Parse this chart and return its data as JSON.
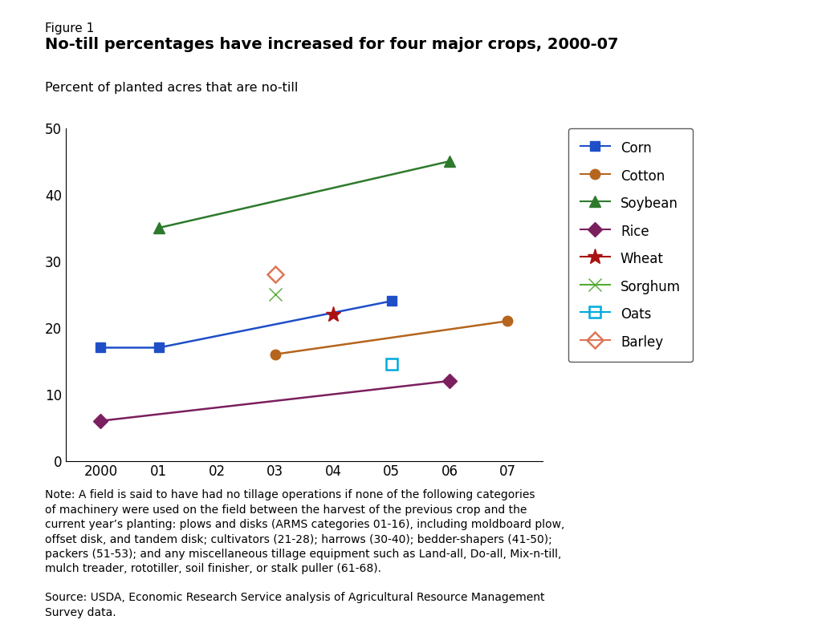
{
  "figure_label": "Figure 1",
  "title": "No-till percentages have increased for four major crops, 2000-07",
  "ylabel": "Percent of planted acres that are no-till",
  "ylim": [
    0,
    50
  ],
  "yticks": [
    0,
    10,
    20,
    30,
    40,
    50
  ],
  "xticks": [
    2000,
    2001,
    2002,
    2003,
    2004,
    2005,
    2006,
    2007
  ],
  "xticklabels": [
    "2000",
    "01",
    "02",
    "03",
    "04",
    "05",
    "06",
    "07"
  ],
  "background_color": "#ffffff",
  "note_text": "Note: A field is said to have had no tillage operations if none of the following categories\nof machinery were used on the field between the harvest of the previous crop and the\ncurrent year’s planting: plows and disks (ARMS categories 01-16), including moldboard plow,\noffset disk, and tandem disk; cultivators (21-28); harrows (30-40); bedder-shapers (41-50);\npackers (51-53); and any miscellaneous tillage equipment such as Land-all, Do-all, Mix-n-till,\nmulch treader, rototiller, soil finisher, or stalk puller (61-68).",
  "source_text": "Source: USDA, Economic Research Service analysis of Agricultural Resource Management\nSurvey data.",
  "series": {
    "Corn": {
      "x": [
        2000,
        2001,
        2005
      ],
      "y": [
        17,
        17,
        24
      ],
      "color": "#1f4fc8",
      "marker": "s",
      "markersize": 9,
      "linewidth": 1.8,
      "fillstyle": "full"
    },
    "Cotton": {
      "x": [
        2003,
        2007
      ],
      "y": [
        16,
        21
      ],
      "color": "#b5651d",
      "marker": "o",
      "markersize": 9,
      "linewidth": 1.8,
      "fillstyle": "full"
    },
    "Soybean": {
      "x": [
        2001,
        2006
      ],
      "y": [
        35,
        45
      ],
      "color": "#2d7a2d",
      "marker": "^",
      "markersize": 10,
      "linewidth": 1.8,
      "fillstyle": "full"
    },
    "Rice": {
      "x": [
        2000,
        2006
      ],
      "y": [
        6,
        12
      ],
      "color": "#7b1f5e",
      "marker": "D",
      "markersize": 9,
      "linewidth": 1.8,
      "fillstyle": "full"
    },
    "Wheat": {
      "x": [
        2004
      ],
      "y": [
        22
      ],
      "color": "#aa1111",
      "marker": "*",
      "markersize": 14,
      "linewidth": 1.8,
      "fillstyle": "full"
    },
    "Sorghum": {
      "x": [
        2003
      ],
      "y": [
        25
      ],
      "color": "#55aa33",
      "marker": "x",
      "markersize": 12,
      "linewidth": 2.5,
      "fillstyle": "full"
    },
    "Oats": {
      "x": [
        2005
      ],
      "y": [
        14.5
      ],
      "color": "#00aadd",
      "marker": "s",
      "markersize": 10,
      "linewidth": 1.8,
      "fillstyle": "none"
    },
    "Barley": {
      "x": [
        2003
      ],
      "y": [
        28
      ],
      "color": "#dd7755",
      "marker": "D",
      "markersize": 10,
      "linewidth": 1.8,
      "fillstyle": "none"
    }
  }
}
